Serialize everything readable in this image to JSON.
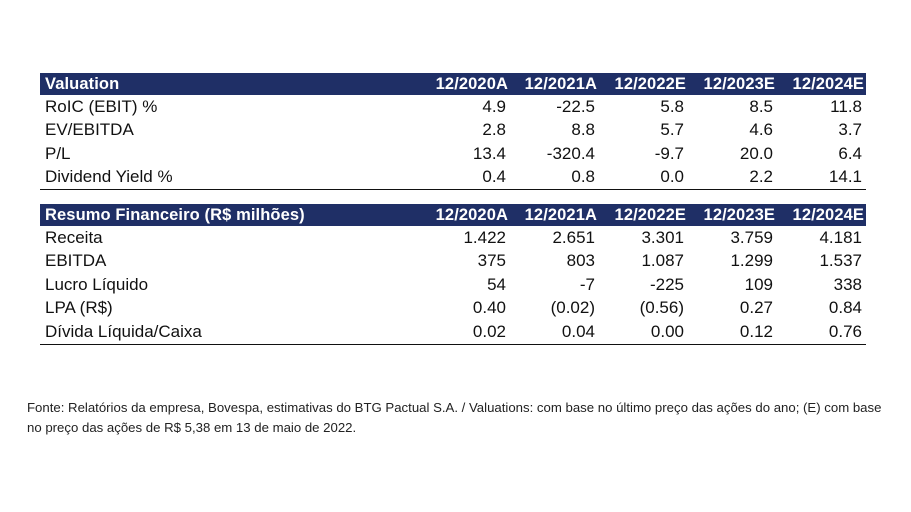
{
  "valuation": {
    "headers": [
      "Valuation",
      "12/2020A",
      "12/2021A",
      "12/2022E",
      "12/2023E",
      "12/2024E"
    ],
    "rows": [
      {
        "label": "RoIC (EBIT) %",
        "values": [
          "4.9",
          "-22.5",
          "5.8",
          "8.5",
          "11.8"
        ]
      },
      {
        "label": "EV/EBITDA",
        "values": [
          "2.8",
          "8.8",
          "5.7",
          "4.6",
          "3.7"
        ]
      },
      {
        "label": "P/L",
        "values": [
          "13.4",
          "-320.4",
          "-9.7",
          "20.0",
          "6.4"
        ]
      },
      {
        "label": "Dividend Yield %",
        "values": [
          "0.4",
          "0.8",
          "0.0",
          "2.2",
          "14.1"
        ]
      }
    ]
  },
  "financeiro": {
    "headers": [
      "Resumo Financeiro (R$ milhões)",
      "12/2020A",
      "12/2021A",
      "12/2022E",
      "12/2023E",
      "12/2024E"
    ],
    "rows": [
      {
        "label": "Receita",
        "values": [
          "1.422",
          "2.651",
          "3.301",
          "3.759",
          "4.181"
        ]
      },
      {
        "label": "EBITDA",
        "values": [
          "375",
          "803",
          "1.087",
          "1.299",
          "1.537"
        ]
      },
      {
        "label": "Lucro Líquido",
        "values": [
          "54",
          "-7",
          "-225",
          "109",
          "338"
        ]
      },
      {
        "label": "LPA (R$)",
        "values": [
          "0.40",
          "(0.02)",
          "(0.56)",
          "0.27",
          "0.84"
        ]
      },
      {
        "label": "Dívida Líquida/Caixa",
        "values": [
          "0.02",
          "0.04",
          "0.00",
          "0.12",
          "0.76"
        ]
      }
    ]
  },
  "footnote": "Fonte: Relatórios da empresa, Bovespa, estimativas do BTG Pactual S.A. / Valuations: com base no último preço das ações do ano; (E) com base no preço das ações de R$ 5,38  em 13 de maio de 2022.",
  "colors": {
    "header_bg": "#1f2f66",
    "header_text": "#ffffff"
  }
}
